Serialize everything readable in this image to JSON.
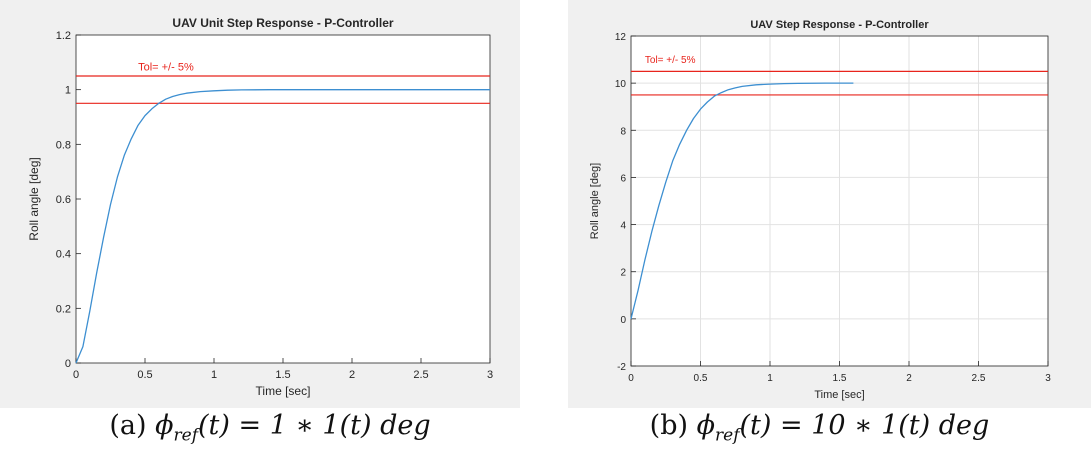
{
  "chart_data": [
    {
      "type": "line",
      "title": "UAV Unit Step Response - P-Controller",
      "xlabel": "Time [sec]",
      "ylabel": "Roll angle [deg]",
      "xlim": [
        0,
        3
      ],
      "ylim": [
        0,
        1.2
      ],
      "xticks": [
        0,
        0.5,
        1,
        1.5,
        2,
        2.5,
        3
      ],
      "xtick_labels": [
        "0",
        "0.5",
        "1",
        "1.5",
        "2",
        "2.5",
        "3"
      ],
      "yticks": [
        0,
        0.2,
        0.4,
        0.6,
        0.8,
        1,
        1.2
      ],
      "ytick_labels": [
        "0",
        "0.2",
        "0.4",
        "0.6",
        "0.8",
        "1",
        "1.2"
      ],
      "grid": false,
      "annotation": {
        "text": "Tol= +/- 5%",
        "x": 0.45,
        "y": 1.07
      },
      "hlines": [
        1.05,
        0.95
      ],
      "hline_color": "#e8241c",
      "series": [
        {
          "color": "#3d8fd1",
          "x": [
            0,
            0.05,
            0.1,
            0.15,
            0.2,
            0.25,
            0.3,
            0.35,
            0.4,
            0.45,
            0.5,
            0.55,
            0.6,
            0.65,
            0.7,
            0.75,
            0.8,
            0.9,
            1.0,
            1.1,
            1.2,
            1.4,
            1.6,
            2.0,
            2.5,
            3.0
          ],
          "y": [
            0,
            0.06,
            0.19,
            0.33,
            0.46,
            0.58,
            0.68,
            0.76,
            0.82,
            0.87,
            0.905,
            0.93,
            0.95,
            0.965,
            0.975,
            0.982,
            0.987,
            0.993,
            0.996,
            0.998,
            0.999,
            1.0,
            1.0,
            1.0,
            1.0,
            1.0
          ]
        }
      ]
    },
    {
      "type": "line",
      "title": "UAV Step Response - P-Controller",
      "xlabel": "Time [sec]",
      "ylabel": "Roll angle [deg]",
      "xlim": [
        0,
        3
      ],
      "ylim": [
        -2,
        12
      ],
      "xticks": [
        0,
        0.5,
        1,
        1.5,
        2,
        2.5,
        3
      ],
      "xtick_labels": [
        "0",
        "0.5",
        "1",
        "1.5",
        "2",
        "2.5",
        "3"
      ],
      "yticks": [
        -2,
        0,
        2,
        4,
        6,
        8,
        10,
        12
      ],
      "ytick_labels": [
        "-2",
        "0",
        "2",
        "4",
        "6",
        "8",
        "10",
        "12"
      ],
      "grid": true,
      "annotation": {
        "text": "Tol= +/- 5%",
        "x": 0.1,
        "y": 10.85
      },
      "hlines": [
        10.5,
        9.5
      ],
      "hline_color": "#e8241c",
      "series": [
        {
          "color": "#3d8fd1",
          "x": [
            0,
            0.05,
            0.1,
            0.15,
            0.2,
            0.25,
            0.3,
            0.35,
            0.4,
            0.45,
            0.5,
            0.55,
            0.6,
            0.65,
            0.7,
            0.75,
            0.8,
            0.9,
            1.0,
            1.1,
            1.2,
            1.4,
            1.6
          ],
          "y": [
            0,
            1.2,
            2.5,
            3.7,
            4.8,
            5.8,
            6.7,
            7.4,
            8.0,
            8.5,
            8.9,
            9.2,
            9.45,
            9.6,
            9.72,
            9.8,
            9.86,
            9.93,
            9.96,
            9.98,
            9.99,
            10.0,
            10.0
          ]
        }
      ]
    }
  ],
  "captions": {
    "a_prefix": "(a) ",
    "a_phi": "ϕ",
    "a_sub": "ref",
    "a_rest": "(t) = 1 ∗ 1(t) deg",
    "b_prefix": "(b) ",
    "b_phi": "ϕ",
    "b_sub": "ref",
    "b_rest": "(t) = 10 ∗ 1(t) deg"
  }
}
